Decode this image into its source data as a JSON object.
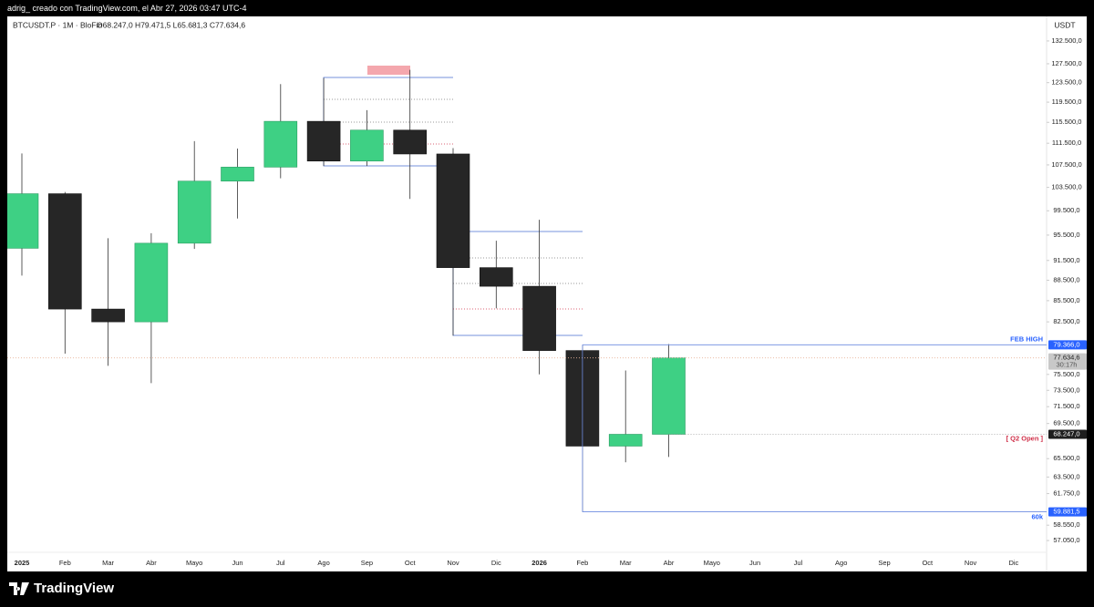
{
  "header": {
    "caption": "adrig_ creado con TradingView.com, el Abr 27, 2026 03:47 UTC-4",
    "symbol": "BTCUSDT.P · 1M · BloFin",
    "ohlc": "O68.247,0 H79.471,5 L65.681,3 C77.634,6",
    "currency": "USDT"
  },
  "footer": {
    "brand": "TradingView"
  },
  "chart_data": {
    "type": "candlestick",
    "log": true,
    "up_color": "#3ed084",
    "down_color": "#262626",
    "categories": [
      "2025",
      "Feb",
      "Mar",
      "Abr",
      "Mayo",
      "Jun",
      "Jul",
      "Ago",
      "Sep",
      "Oct",
      "Nov",
      "Dic",
      "2026",
      "Feb",
      "Mar",
      "Abr",
      "Mayo",
      "Jun",
      "Jul",
      "Ago",
      "Sep",
      "Oct",
      "Nov",
      "Dic"
    ],
    "open": [
      93400,
      102400,
      84300,
      82500,
      94200,
      104600,
      107100,
      115700,
      108200,
      114000,
      109500,
      90400,
      87600,
      78600,
      66900,
      68247,
      null,
      null,
      null,
      null,
      null,
      null,
      null,
      null
    ],
    "high": [
      109600,
      102700,
      95000,
      95800,
      111900,
      110500,
      123200,
      124500,
      117900,
      126200,
      110600,
      94600,
      98000,
      79366,
      76000,
      79471.5,
      null,
      null,
      null,
      null,
      null,
      null,
      null,
      null
    ],
    "low": [
      89200,
      78200,
      76600,
      74400,
      93300,
      98200,
      105100,
      107300,
      107300,
      101500,
      80600,
      84400,
      75500,
      59881.5,
      65100,
      65681.3,
      null,
      null,
      null,
      null,
      null,
      null,
      null,
      null
    ],
    "close": [
      102400,
      84300,
      82500,
      94200,
      104600,
      107100,
      115700,
      108200,
      114000,
      109500,
      90400,
      87600,
      78600,
      66900,
      68247,
      77634.6,
      null,
      null,
      null,
      null,
      null,
      null,
      null,
      null
    ],
    "ylim": [
      56100,
      138100
    ],
    "yticks": [
      {
        "value": 132500,
        "label": "132.500,0"
      },
      {
        "value": 127500,
        "label": "127.500,0"
      },
      {
        "value": 123500,
        "label": "123.500,0"
      },
      {
        "value": 119500,
        "label": "119.500,0"
      },
      {
        "value": 115500,
        "label": "115.500,0"
      },
      {
        "value": 111500,
        "label": "111.500,0"
      },
      {
        "value": 107500,
        "label": "107.500,0"
      },
      {
        "value": 103500,
        "label": "103.500,0"
      },
      {
        "value": 99500,
        "label": "99.500,0"
      },
      {
        "value": 95500,
        "label": "95.500,0"
      },
      {
        "value": 91500,
        "label": "91.500,0"
      },
      {
        "value": 88500,
        "label": "88.500,0"
      },
      {
        "value": 85500,
        "label": "85.500,0"
      },
      {
        "value": 82500,
        "label": "82.500,0"
      },
      {
        "value": 75500,
        "label": "75.500,0"
      },
      {
        "value": 73500,
        "label": "73.500,0"
      },
      {
        "value": 71500,
        "label": "71.500,0"
      },
      {
        "value": 69500,
        "label": "69.500,0"
      },
      {
        "value": 65500,
        "label": "65.500,0"
      },
      {
        "value": 63500,
        "label": "63.500,0"
      },
      {
        "value": 61750,
        "label": "61.750,0"
      },
      {
        "value": 58550,
        "label": "58.550,0"
      },
      {
        "value": 57050,
        "label": "57.050,0"
      }
    ],
    "levels": [
      {
        "value": 79366,
        "label": "79.366,0",
        "text": "FEB HIGH",
        "color": "#2962ff",
        "start": 13
      },
      {
        "value": 77634.6,
        "label": "77.634,6",
        "countdown": "30:17h",
        "color": "#c8c8c8",
        "start": 0
      },
      {
        "value": 68247,
        "label": "68.247,0",
        "text": "[ Q2 Open ]",
        "color": "#d0314a",
        "start": 15
      },
      {
        "value": 59881.5,
        "label": "59.881,5",
        "text": "60k",
        "color": "#2962ff",
        "start": 13
      }
    ]
  }
}
